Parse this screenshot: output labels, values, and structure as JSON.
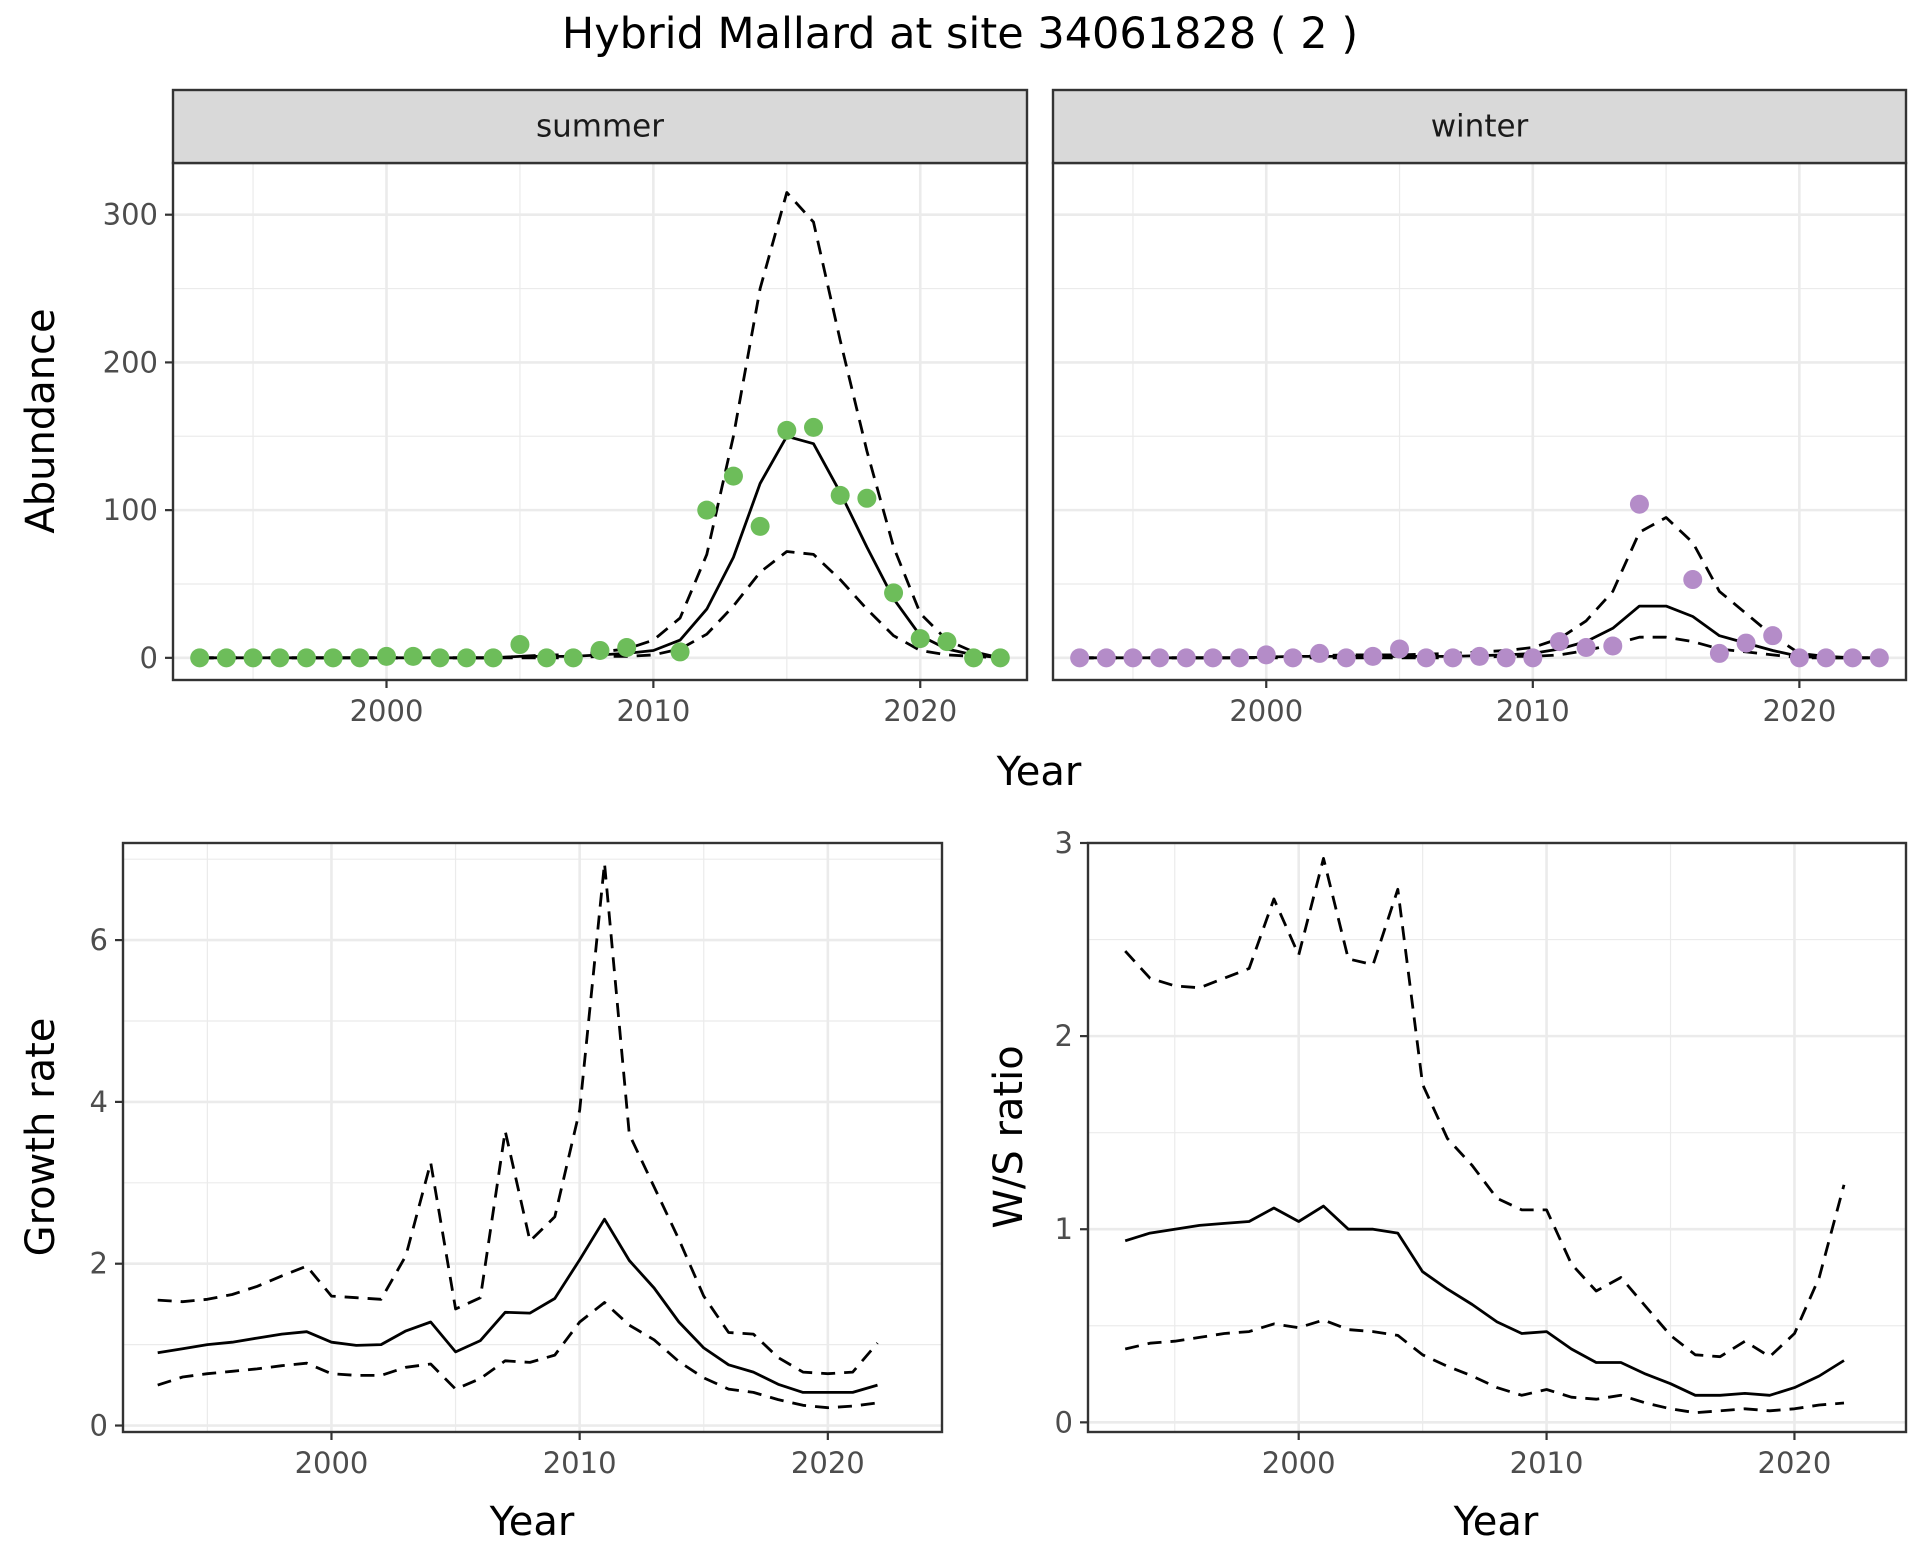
{
  "figure": {
    "title": "Hybrid Mallard at site 34061828 ( 2 )"
  },
  "colors": {
    "summer_points": "#6dbd5a",
    "winter_points": "#b48cc8",
    "line": "#000000",
    "strip_fill": "#d9d9d9",
    "grid": "#ebebeb",
    "tick_text": "#4d4d4d"
  },
  "chart_data": [
    {
      "type": "scatter",
      "panel": "abundance",
      "facets": [
        "summer",
        "winter"
      ],
      "xlabel": "Year",
      "ylabel": "Abundance",
      "x_ticks": [
        2000,
        2010,
        2020
      ],
      "y_ticks": [
        0,
        100,
        200,
        300
      ],
      "xlim": [
        1992,
        2024
      ],
      "ylim": [
        -15,
        335
      ],
      "grid": true,
      "series": [
        {
          "facet": "summer",
          "kind": "points",
          "x": [
            1993,
            1994,
            1995,
            1996,
            1997,
            1998,
            1999,
            2000,
            2001,
            2002,
            2003,
            2004,
            2005,
            2006,
            2007,
            2008,
            2009,
            2010,
            2011,
            2012,
            2013,
            2014,
            2015,
            2016,
            2017,
            2018,
            2019,
            2020,
            2021,
            2022,
            2023
          ],
          "y": [
            0,
            0,
            0,
            0,
            0,
            0,
            0,
            1,
            1,
            0,
            0,
            0,
            9,
            0,
            0,
            5,
            7,
            null,
            4,
            100,
            123,
            89,
            154,
            156,
            110,
            108,
            44,
            13,
            11,
            0,
            0
          ]
        },
        {
          "facet": "summer",
          "kind": "fit",
          "x": [
            1993,
            1995,
            1997,
            1999,
            2001,
            2003,
            2004,
            2005,
            2006,
            2007,
            2008,
            2009,
            2010,
            2011,
            2012,
            2013,
            2014,
            2015,
            2016,
            2017,
            2018,
            2019,
            2020,
            2021,
            2022,
            2023
          ],
          "y": [
            0,
            0,
            0,
            0,
            0,
            0,
            0,
            1,
            1,
            1,
            2,
            3,
            5,
            12,
            33,
            68,
            118,
            150,
            145,
            112,
            75,
            40,
            15,
            6,
            2,
            0
          ]
        },
        {
          "facet": "summer",
          "kind": "upper",
          "x": [
            1993,
            1995,
            1997,
            1999,
            2001,
            2003,
            2004,
            2005,
            2006,
            2007,
            2008,
            2009,
            2010,
            2011,
            2012,
            2013,
            2014,
            2015,
            2016,
            2017,
            2018,
            2019,
            2020,
            2021,
            2022,
            2023
          ],
          "y": [
            0,
            0,
            0,
            0,
            0,
            0,
            0,
            1,
            2,
            2,
            4,
            6,
            12,
            27,
            70,
            150,
            250,
            315,
            295,
            215,
            140,
            75,
            30,
            12,
            4,
            0
          ]
        },
        {
          "facet": "summer",
          "kind": "lower",
          "x": [
            1993,
            1995,
            1997,
            1999,
            2001,
            2003,
            2004,
            2005,
            2006,
            2007,
            2008,
            2009,
            2010,
            2011,
            2012,
            2013,
            2014,
            2015,
            2016,
            2017,
            2018,
            2019,
            2020,
            2021,
            2022,
            2023
          ],
          "y": [
            0,
            0,
            0,
            0,
            0,
            0,
            0,
            0,
            0,
            0,
            1,
            1,
            2,
            6,
            16,
            35,
            58,
            72,
            70,
            53,
            33,
            15,
            5,
            2,
            1,
            0
          ]
        },
        {
          "facet": "winter",
          "kind": "points",
          "x": [
            1993,
            1994,
            1995,
            1996,
            1997,
            1998,
            1999,
            2000,
            2001,
            2002,
            2003,
            2004,
            2005,
            2006,
            2007,
            2008,
            2009,
            2010,
            2011,
            2012,
            2013,
            2014,
            2015,
            2016,
            2017,
            2018,
            2019,
            2020,
            2021,
            2022,
            2023
          ],
          "y": [
            0,
            0,
            0,
            0,
            0,
            0,
            0,
            2,
            0,
            3,
            0,
            1,
            6,
            0,
            0,
            1,
            0,
            0,
            11,
            7,
            8,
            104,
            null,
            53,
            3,
            10,
            15,
            0,
            0,
            0,
            0
          ]
        },
        {
          "facet": "winter",
          "kind": "fit",
          "x": [
            1993,
            1995,
            1997,
            1999,
            2001,
            2003,
            2005,
            2007,
            2009,
            2010,
            2011,
            2012,
            2013,
            2014,
            2015,
            2016,
            2017,
            2018,
            2019,
            2020,
            2021,
            2022,
            2023
          ],
          "y": [
            0,
            0,
            0,
            0,
            1,
            1,
            1,
            1,
            2,
            3,
            6,
            11,
            20,
            35,
            35,
            28,
            15,
            10,
            5,
            1,
            0,
            0,
            0
          ]
        },
        {
          "facet": "winter",
          "kind": "upper",
          "x": [
            1993,
            1995,
            1997,
            1999,
            2001,
            2003,
            2005,
            2007,
            2009,
            2010,
            2011,
            2012,
            2013,
            2014,
            2015,
            2016,
            2017,
            2018,
            2019,
            2020,
            2021,
            2022,
            2023
          ],
          "y": [
            0,
            0,
            0,
            0,
            1,
            2,
            2,
            3,
            5,
            7,
            13,
            25,
            45,
            85,
            95,
            78,
            45,
            30,
            15,
            3,
            1,
            0,
            0
          ]
        },
        {
          "facet": "winter",
          "kind": "lower",
          "x": [
            1993,
            1995,
            1997,
            1999,
            2001,
            2003,
            2005,
            2007,
            2009,
            2010,
            2011,
            2012,
            2013,
            2014,
            2015,
            2016,
            2017,
            2018,
            2019,
            2020,
            2021,
            2022,
            2023
          ],
          "y": [
            0,
            0,
            0,
            0,
            0,
            0,
            0,
            0,
            1,
            1,
            2,
            5,
            9,
            14,
            14,
            11,
            6,
            4,
            2,
            0,
            0,
            0,
            0
          ]
        }
      ]
    },
    {
      "type": "line",
      "panel": "growth",
      "xlabel": "Year",
      "ylabel": "Growth rate",
      "x_ticks": [
        2000,
        2010,
        2020
      ],
      "y_ticks": [
        0,
        2,
        4,
        6
      ],
      "xlim": [
        1991.6,
        2024.6
      ],
      "ylim": [
        -0.08,
        7.2
      ],
      "grid": true,
      "series": [
        {
          "kind": "fit",
          "x": [
            1993,
            1994,
            1995,
            1996,
            1997,
            1998,
            1999,
            2000,
            2001,
            2002,
            2003,
            2004,
            2005,
            2006,
            2007,
            2008,
            2009,
            2010,
            2011,
            2012,
            2013,
            2014,
            2015,
            2016,
            2017,
            2018,
            2019,
            2020,
            2021,
            2022
          ],
          "y": [
            0.9,
            0.95,
            1.0,
            1.03,
            1.08,
            1.13,
            1.16,
            1.03,
            0.99,
            1.0,
            1.17,
            1.28,
            0.91,
            1.05,
            1.4,
            1.39,
            1.57,
            2.05,
            2.55,
            2.04,
            1.7,
            1.28,
            0.96,
            0.75,
            0.66,
            0.51,
            0.41,
            0.41,
            0.41,
            0.5
          ]
        },
        {
          "kind": "upper",
          "x": [
            1993,
            1994,
            1995,
            1996,
            1997,
            1998,
            1999,
            2000,
            2001,
            2002,
            2003,
            2004,
            2005,
            2006,
            2007,
            2008,
            2009,
            2010,
            2011,
            2012,
            2013,
            2014,
            2015,
            2016,
            2017,
            2018,
            2019,
            2020,
            2021,
            2022
          ],
          "y": [
            1.55,
            1.53,
            1.56,
            1.62,
            1.72,
            1.85,
            1.97,
            1.6,
            1.58,
            1.56,
            2.1,
            3.25,
            1.44,
            1.58,
            3.64,
            2.28,
            2.58,
            3.9,
            6.95,
            3.6,
            2.95,
            2.3,
            1.6,
            1.15,
            1.13,
            0.84,
            0.66,
            0.64,
            0.66,
            1.02
          ]
        },
        {
          "kind": "lower",
          "x": [
            1993,
            1994,
            1995,
            1996,
            1997,
            1998,
            1999,
            2000,
            2001,
            2002,
            2003,
            2004,
            2005,
            2006,
            2007,
            2008,
            2009,
            2010,
            2011,
            2012,
            2013,
            2014,
            2015,
            2016,
            2017,
            2018,
            2019,
            2020,
            2021,
            2022
          ],
          "y": [
            0.5,
            0.6,
            0.64,
            0.67,
            0.7,
            0.74,
            0.77,
            0.64,
            0.62,
            0.62,
            0.72,
            0.76,
            0.45,
            0.58,
            0.8,
            0.78,
            0.87,
            1.28,
            1.52,
            1.24,
            1.06,
            0.79,
            0.59,
            0.45,
            0.41,
            0.32,
            0.25,
            0.22,
            0.24,
            0.28
          ]
        }
      ]
    },
    {
      "type": "line",
      "panel": "ratio",
      "xlabel": "Year",
      "ylabel": "W/S ratio",
      "x_ticks": [
        2000,
        2010,
        2020
      ],
      "y_ticks": [
        0,
        1,
        2,
        3
      ],
      "xlim": [
        1991.5,
        2024.5
      ],
      "ylim": [
        -0.05,
        3.0
      ],
      "grid": true,
      "series": [
        {
          "kind": "fit",
          "x": [
            1993,
            1994,
            1995,
            1996,
            1997,
            1998,
            1999,
            2000,
            2001,
            2002,
            2003,
            2004,
            2005,
            2006,
            2007,
            2008,
            2009,
            2010,
            2011,
            2012,
            2013,
            2014,
            2015,
            2016,
            2017,
            2018,
            2019,
            2020,
            2021,
            2022
          ],
          "y": [
            0.94,
            0.98,
            1.0,
            1.02,
            1.03,
            1.04,
            1.11,
            1.04,
            1.12,
            1.0,
            1.0,
            0.98,
            0.78,
            0.69,
            0.61,
            0.52,
            0.46,
            0.47,
            0.38,
            0.31,
            0.31,
            0.25,
            0.2,
            0.14,
            0.14,
            0.15,
            0.14,
            0.18,
            0.24,
            0.32
          ]
        },
        {
          "kind": "upper",
          "x": [
            1993,
            1994,
            1995,
            1996,
            1997,
            1998,
            1999,
            2000,
            2001,
            2002,
            2003,
            2004,
            2005,
            2006,
            2007,
            2008,
            2009,
            2010,
            2011,
            2012,
            2013,
            2014,
            2015,
            2016,
            2017,
            2018,
            2019,
            2020,
            2021,
            2022
          ],
          "y": [
            2.44,
            2.3,
            2.26,
            2.25,
            2.3,
            2.35,
            2.71,
            2.42,
            2.92,
            2.4,
            2.37,
            2.76,
            1.75,
            1.47,
            1.33,
            1.16,
            1.1,
            1.1,
            0.82,
            0.68,
            0.75,
            0.6,
            0.45,
            0.35,
            0.34,
            0.42,
            0.34,
            0.46,
            0.75,
            1.23
          ]
        },
        {
          "kind": "lower",
          "x": [
            1993,
            1994,
            1995,
            1996,
            1997,
            1998,
            1999,
            2000,
            2001,
            2002,
            2003,
            2004,
            2005,
            2006,
            2007,
            2008,
            2009,
            2010,
            2011,
            2012,
            2013,
            2014,
            2015,
            2016,
            2017,
            2018,
            2019,
            2020,
            2021,
            2022
          ],
          "y": [
            0.38,
            0.41,
            0.42,
            0.44,
            0.46,
            0.47,
            0.51,
            0.49,
            0.53,
            0.48,
            0.47,
            0.45,
            0.35,
            0.29,
            0.24,
            0.18,
            0.14,
            0.17,
            0.13,
            0.12,
            0.14,
            0.1,
            0.07,
            0.05,
            0.06,
            0.07,
            0.06,
            0.07,
            0.09,
            0.1
          ]
        }
      ]
    }
  ]
}
